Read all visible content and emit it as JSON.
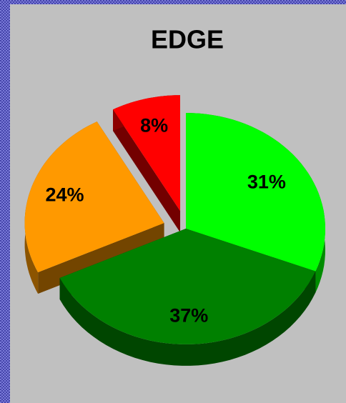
{
  "chart_data": {
    "type": "pie",
    "title": "EDGE",
    "values": [
      31,
      37,
      24,
      8
    ],
    "value_labels": [
      "31%",
      "37%",
      "24%",
      "8%"
    ],
    "colors": [
      "#00ff00",
      "#008000",
      "#ff9900",
      "#ff0000"
    ],
    "exploded": [
      false,
      false,
      true,
      true
    ]
  }
}
